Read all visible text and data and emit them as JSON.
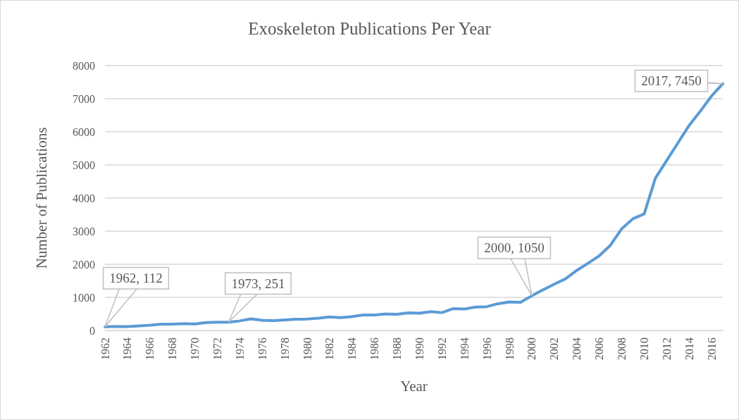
{
  "chart_data": {
    "type": "line",
    "title": "Exoskeleton Publications Per Year",
    "xlabel": "Year",
    "ylabel": "Number of Publications",
    "x": [
      1962,
      1963,
      1964,
      1965,
      1966,
      1967,
      1968,
      1969,
      1970,
      1971,
      1972,
      1973,
      1974,
      1975,
      1976,
      1977,
      1978,
      1979,
      1980,
      1981,
      1982,
      1983,
      1984,
      1985,
      1986,
      1987,
      1988,
      1989,
      1990,
      1991,
      1992,
      1993,
      1994,
      1995,
      1996,
      1997,
      1998,
      1999,
      2000,
      2001,
      2002,
      2003,
      2004,
      2005,
      2006,
      2007,
      2008,
      2009,
      2010,
      2011,
      2012,
      2013,
      2014,
      2015,
      2016,
      2017
    ],
    "series": [
      {
        "color": "#5b9bd5",
        "values": [
          112,
          120,
          115,
          140,
          160,
          190,
          190,
          205,
          195,
          240,
          250,
          251,
          290,
          350,
          310,
          300,
          320,
          340,
          345,
          370,
          410,
          390,
          420,
          470,
          470,
          500,
          490,
          530,
          520,
          570,
          540,
          660,
          650,
          710,
          720,
          810,
          860,
          850,
          1050,
          1230,
          1400,
          1560,
          1815,
          2030,
          2255,
          2575,
          3070,
          3375,
          3520,
          4600,
          5130,
          5660,
          6190,
          6620,
          7080,
          7450
        ]
      }
    ],
    "xlim": [
      1962,
      2017
    ],
    "xticks": [
      1962,
      1964,
      1966,
      1968,
      1970,
      1972,
      1974,
      1976,
      1978,
      1980,
      1982,
      1984,
      1986,
      1988,
      1990,
      1992,
      1994,
      1996,
      1998,
      2000,
      2002,
      2004,
      2006,
      2008,
      2010,
      2012,
      2014,
      2016
    ],
    "ylim": [
      0,
      8000
    ],
    "yticks": [
      0,
      1000,
      2000,
      3000,
      4000,
      5000,
      6000,
      7000,
      8000
    ],
    "grid": "y",
    "marker": "none",
    "line_style": "solid",
    "annotations": [
      {
        "text": "1962, 112",
        "x": 1962,
        "y": 112
      },
      {
        "text": "1973, 251",
        "x": 1973,
        "y": 251
      },
      {
        "text": "2000, 1050",
        "x": 2000,
        "y": 1050
      },
      {
        "text": "2017, 7450",
        "x": 2017,
        "y": 7450
      }
    ]
  }
}
